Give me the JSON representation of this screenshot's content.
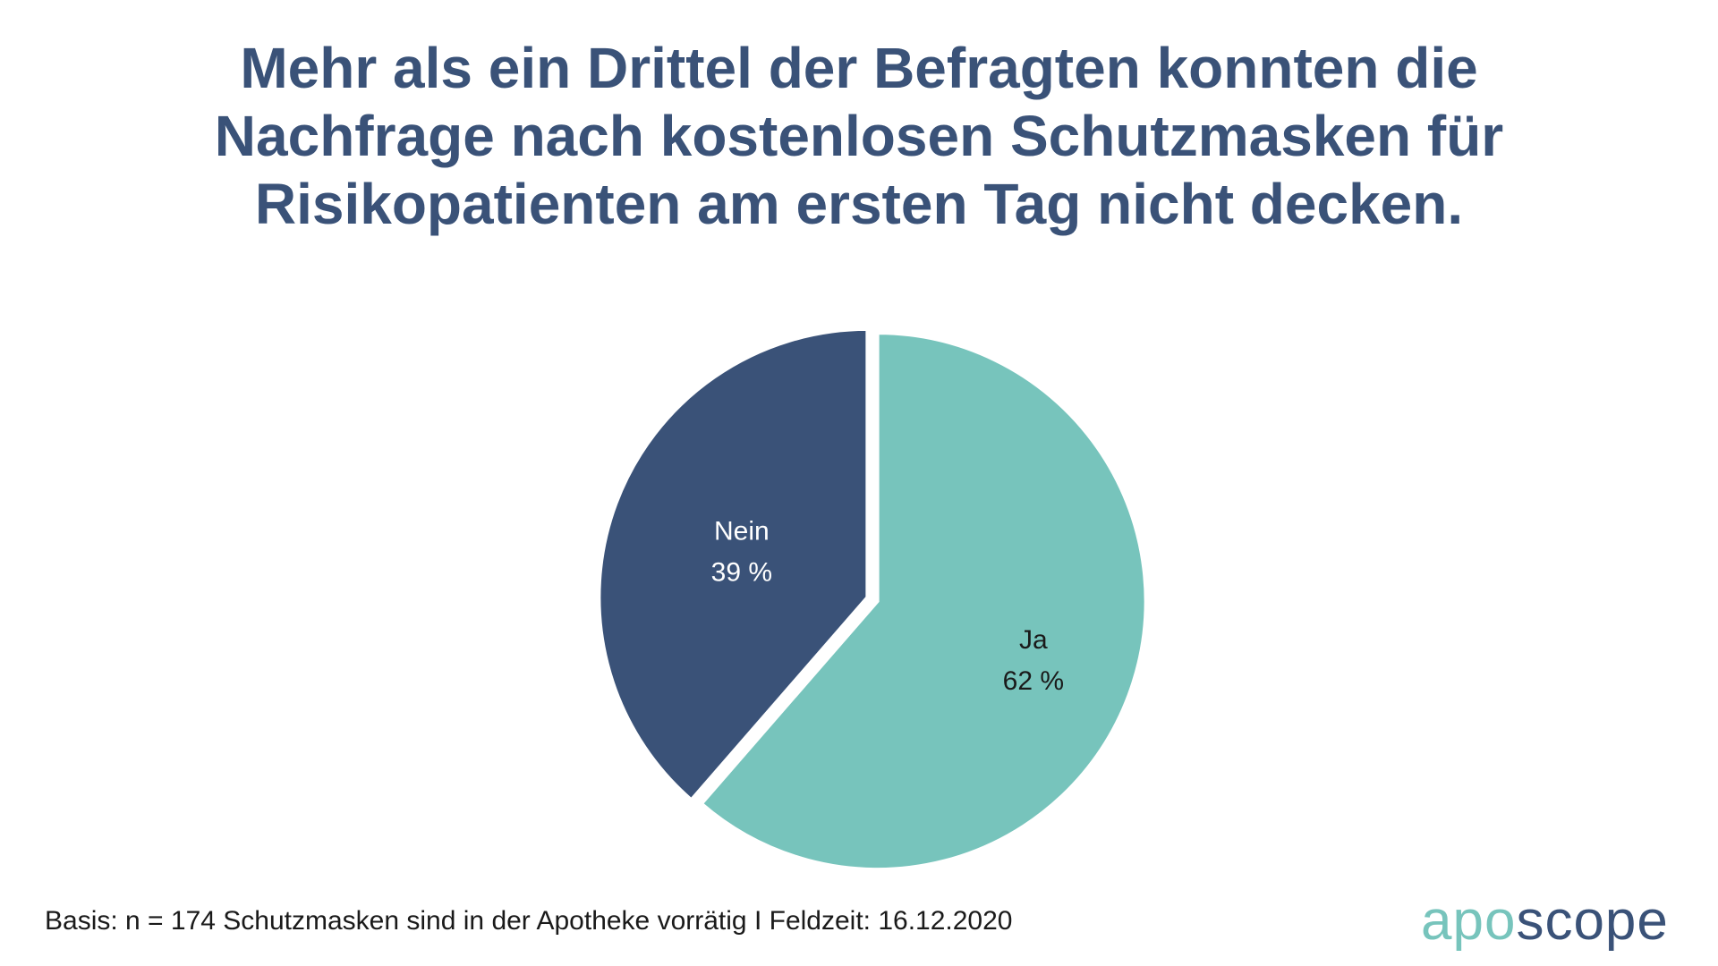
{
  "title_lines": [
    "Mehr als ein Drittel der Befragten konnten die",
    "Nachfrage nach kostenlosen Schutzmasken für",
    "Risikopatienten am ersten Tag nicht decken."
  ],
  "footnote": "Basis: n = 174 Schutzmasken sind in der Apotheke vorrätig I Feldzeit: 16.12.2020",
  "logo": {
    "part1": "apo",
    "part2": "scope",
    "color1": "#77c4bc",
    "color2": "#3a5278"
  },
  "colors": {
    "title": "#3a5278",
    "nein": "#3a5278",
    "ja": "#77c4bc"
  },
  "chart_data": {
    "type": "pie",
    "slices": [
      {
        "label": "Nein",
        "value": 39,
        "display": "39 %",
        "color": "#3a5278",
        "text_color": "#ffffff"
      },
      {
        "label": "Ja",
        "value": 62,
        "display": "62 %",
        "color": "#77c4bc",
        "text_color": "#1a1a1a"
      }
    ]
  }
}
